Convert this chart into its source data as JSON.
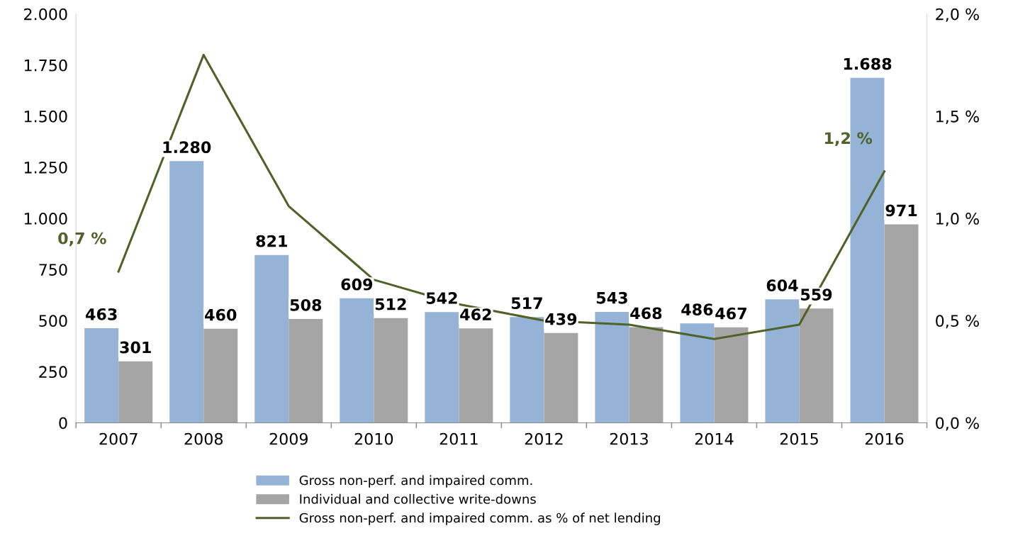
{
  "chart_data": {
    "type": "bar",
    "categories": [
      "2007",
      "2008",
      "2009",
      "2010",
      "2011",
      "2012",
      "2013",
      "2014",
      "2015",
      "2016"
    ],
    "series": [
      {
        "name": "Gross non-perf. and impaired comm.",
        "color": "#95b3d7",
        "values": [
          463,
          1280,
          821,
          609,
          542,
          517,
          543,
          486,
          604,
          1688
        ],
        "value_labels": [
          "463",
          "1.280",
          "821",
          "609",
          "542",
          "517",
          "543",
          "486",
          "604",
          "1.688"
        ]
      },
      {
        "name": "Individual and collective write-downs",
        "color": "#a5a5a5",
        "values": [
          301,
          460,
          508,
          512,
          462,
          439,
          468,
          467,
          559,
          971
        ],
        "value_labels": [
          "301",
          "460",
          "508",
          "512",
          "462",
          "439",
          "468",
          "467",
          "559",
          "971"
        ]
      },
      {
        "name": "Gross non-perf. and impaired comm. as % of net lending",
        "type": "line",
        "axis": "y2",
        "color": "#4f6228",
        "values": [
          0.74,
          1.8,
          1.06,
          0.7,
          0.58,
          0.5,
          0.48,
          0.41,
          0.48,
          1.23
        ],
        "value_labels": [
          "0,7 %",
          null,
          null,
          null,
          null,
          null,
          null,
          null,
          null,
          "1,2 %"
        ]
      }
    ],
    "ylim": [
      0,
      2000
    ],
    "yticks": [
      {
        "value": 0,
        "label": "0"
      },
      {
        "value": 250,
        "label": "250"
      },
      {
        "value": 500,
        "label": "500"
      },
      {
        "value": 750,
        "label": "750"
      },
      {
        "value": 1000,
        "label": "1.000"
      },
      {
        "value": 1250,
        "label": "1.250"
      },
      {
        "value": 1500,
        "label": "1.500"
      },
      {
        "value": 1750,
        "label": "1.750"
      },
      {
        "value": 2000,
        "label": "2.000"
      }
    ],
    "y2lim": [
      0,
      2.0
    ],
    "y2ticks": [
      {
        "value": 0,
        "label": "0,0 %"
      },
      {
        "value": 0.5,
        "label": "0,5 %"
      },
      {
        "value": 1.0,
        "label": "1,0 %"
      },
      {
        "value": 1.5,
        "label": "1,5 %"
      },
      {
        "value": 2.0,
        "label": "2,0 %"
      }
    ],
    "grid": false,
    "legend": "bottom",
    "marker": "none",
    "line_style": "solid"
  }
}
